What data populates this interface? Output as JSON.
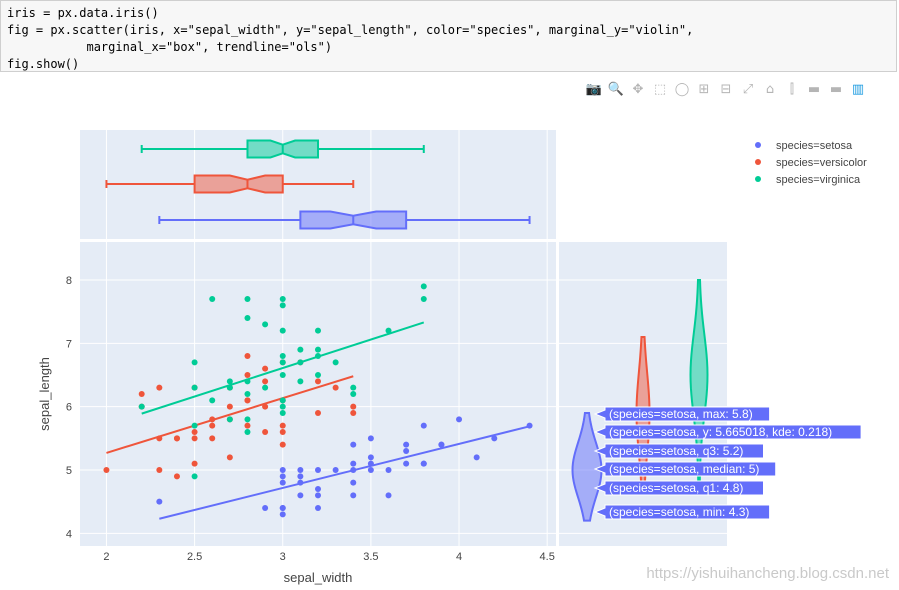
{
  "code": {
    "lines": [
      "iris = px.data.iris()",
      "fig = px.scatter(iris, x=\"sepal_width\", y=\"sepal_length\", color=\"species\", marginal_y=\"violin\",",
      "           marginal_x=\"box\", trendline=\"ols\")",
      "fig.show()"
    ]
  },
  "modebar": {
    "icons": [
      "camera-icon",
      "zoom-icon",
      "pan-icon",
      "box-select-icon",
      "lasso-icon",
      "zoom-in-icon",
      "zoom-out-icon",
      "autoscale-icon",
      "reset-axes-icon",
      "spike-lines-icon",
      "hover-closest-icon",
      "hover-compare-icon",
      "plotly-logo-icon"
    ],
    "glyphs": [
      "📷",
      "🔍",
      "✥",
      "⬚",
      "◯",
      "⊞",
      "⊟",
      "⤢",
      "⌂",
      "⫿",
      "▬",
      "▬",
      "▥"
    ]
  },
  "watermark": "https://yishuihancheng.blog.csdn.net",
  "colors": {
    "setosa": "#636efa",
    "versicolor": "#ef553b",
    "virginica": "#00cc96",
    "plot_bg": "#e5ecf6",
    "grid": "#ffffff"
  },
  "chart_data": {
    "type": "scatter",
    "xlabel": "sepal_width",
    "ylabel": "sepal_length",
    "xlim": [
      1.85,
      4.55
    ],
    "ylim": [
      3.8,
      8.6
    ],
    "xticks": [
      2,
      2.5,
      3,
      3.5,
      4,
      4.5
    ],
    "xtick_labels": [
      "2",
      "2.5",
      "3",
      "3.5",
      "4",
      "4.5"
    ],
    "yticks": [
      4,
      5,
      6,
      7,
      8
    ],
    "ytick_labels": [
      "4",
      "5",
      "6",
      "7",
      "8"
    ],
    "grid": true,
    "legend_position": "top-right",
    "series": [
      {
        "name": "species=setosa",
        "color": "#636efa",
        "points": [
          [
            2.3,
            4.5
          ],
          [
            2.9,
            4.4
          ],
          [
            3.0,
            4.4
          ],
          [
            3.0,
            4.3
          ],
          [
            3.0,
            4.4
          ],
          [
            3.2,
            4.4
          ],
          [
            3.0,
            4.8
          ],
          [
            3.0,
            4.9
          ],
          [
            3.1,
            4.9
          ],
          [
            3.1,
            4.8
          ],
          [
            3.0,
            5.0
          ],
          [
            3.1,
            4.6
          ],
          [
            3.2,
            4.7
          ],
          [
            3.2,
            4.6
          ],
          [
            3.3,
            5.0
          ],
          [
            3.4,
            4.8
          ],
          [
            3.4,
            5.0
          ],
          [
            3.4,
            5.1
          ],
          [
            3.4,
            4.6
          ],
          [
            3.4,
            5.4
          ],
          [
            3.5,
            5.0
          ],
          [
            3.5,
            5.1
          ],
          [
            3.5,
            5.2
          ],
          [
            3.5,
            5.5
          ],
          [
            3.6,
            5.0
          ],
          [
            3.6,
            4.6
          ],
          [
            3.7,
            5.3
          ],
          [
            3.7,
            5.1
          ],
          [
            3.7,
            5.4
          ],
          [
            3.8,
            5.1
          ],
          [
            3.8,
            5.7
          ],
          [
            3.9,
            5.4
          ],
          [
            4.0,
            5.8
          ],
          [
            4.1,
            5.2
          ],
          [
            4.2,
            5.5
          ],
          [
            4.4,
            5.7
          ],
          [
            3.9,
            5.4
          ],
          [
            3.2,
            5.0
          ],
          [
            3.1,
            5.0
          ],
          [
            3.8,
            5.1
          ]
        ],
        "trendline": [
          [
            2.3,
            4.23
          ],
          [
            4.4,
            5.69
          ]
        ]
      },
      {
        "name": "species=versicolor",
        "color": "#ef553b",
        "points": [
          [
            2.0,
            5.0
          ],
          [
            2.2,
            6.0
          ],
          [
            2.2,
            6.2
          ],
          [
            2.3,
            5.0
          ],
          [
            2.3,
            5.5
          ],
          [
            2.3,
            6.3
          ],
          [
            2.4,
            4.9
          ],
          [
            2.4,
            5.5
          ],
          [
            2.5,
            5.1
          ],
          [
            2.5,
            5.5
          ],
          [
            2.5,
            5.6
          ],
          [
            2.6,
            5.5
          ],
          [
            2.6,
            5.7
          ],
          [
            2.6,
            5.8
          ],
          [
            2.7,
            5.2
          ],
          [
            2.7,
            5.8
          ],
          [
            2.7,
            6.0
          ],
          [
            2.8,
            5.7
          ],
          [
            2.8,
            6.1
          ],
          [
            2.8,
            6.5
          ],
          [
            2.8,
            6.8
          ],
          [
            2.9,
            5.6
          ],
          [
            2.9,
            6.0
          ],
          [
            2.9,
            6.4
          ],
          [
            3.0,
            5.4
          ],
          [
            3.0,
            5.6
          ],
          [
            3.0,
            5.7
          ],
          [
            3.0,
            6.7
          ],
          [
            3.1,
            6.7
          ],
          [
            3.2,
            5.9
          ],
          [
            3.2,
            6.4
          ],
          [
            3.3,
            6.3
          ],
          [
            3.4,
            5.9
          ],
          [
            3.4,
            6.0
          ],
          [
            2.9,
            6.6
          ],
          [
            3.0,
            6.1
          ],
          [
            2.8,
            6.1
          ],
          [
            2.4,
            5.5
          ],
          [
            2.7,
            6.3
          ],
          [
            2.5,
            6.3
          ]
        ],
        "trendline": [
          [
            2.0,
            5.27
          ],
          [
            3.4,
            6.48
          ]
        ]
      },
      {
        "name": "species=virginica",
        "color": "#00cc96",
        "points": [
          [
            2.2,
            6.0
          ],
          [
            2.5,
            4.9
          ],
          [
            2.5,
            5.7
          ],
          [
            2.5,
            6.3
          ],
          [
            2.5,
            6.7
          ],
          [
            2.6,
            6.1
          ],
          [
            2.6,
            7.7
          ],
          [
            2.7,
            5.8
          ],
          [
            2.7,
            6.3
          ],
          [
            2.7,
            6.4
          ],
          [
            2.8,
            5.6
          ],
          [
            2.8,
            5.8
          ],
          [
            2.8,
            6.2
          ],
          [
            2.8,
            6.4
          ],
          [
            2.8,
            7.4
          ],
          [
            2.8,
            7.7
          ],
          [
            2.9,
            6.3
          ],
          [
            2.9,
            7.3
          ],
          [
            3.0,
            5.9
          ],
          [
            3.0,
            6.0
          ],
          [
            3.0,
            6.1
          ],
          [
            3.0,
            6.5
          ],
          [
            3.0,
            6.7
          ],
          [
            3.0,
            6.8
          ],
          [
            3.0,
            7.2
          ],
          [
            3.0,
            7.6
          ],
          [
            3.0,
            7.7
          ],
          [
            3.1,
            6.4
          ],
          [
            3.1,
            6.7
          ],
          [
            3.1,
            6.9
          ],
          [
            3.2,
            6.5
          ],
          [
            3.2,
            6.8
          ],
          [
            3.2,
            6.9
          ],
          [
            3.2,
            7.2
          ],
          [
            3.3,
            6.7
          ],
          [
            3.4,
            6.2
          ],
          [
            3.4,
            6.3
          ],
          [
            3.6,
            7.2
          ],
          [
            3.8,
            7.7
          ],
          [
            3.8,
            7.9
          ]
        ],
        "trendline": [
          [
            2.2,
            5.89
          ],
          [
            3.8,
            7.33
          ]
        ]
      }
    ],
    "marginal_x_box": [
      {
        "name": "species=virginica",
        "min": 2.2,
        "q1": 2.8,
        "median": 3.0,
        "q3": 3.2,
        "max": 3.8,
        "notch": [
          2.93,
          3.07
        ]
      },
      {
        "name": "species=versicolor",
        "min": 2.0,
        "q1": 2.5,
        "median": 2.8,
        "q3": 3.0,
        "max": 3.4,
        "notch": [
          2.7,
          2.9
        ]
      },
      {
        "name": "species=setosa",
        "min": 2.3,
        "q1": 3.1,
        "median": 3.4,
        "q3": 3.7,
        "max": 4.4,
        "notch": [
          3.27,
          3.53
        ]
      }
    ],
    "marginal_y_violin": [
      {
        "name": "species=setosa",
        "min": 4.3,
        "q1": 4.8,
        "median": 5.0,
        "q3": 5.2,
        "max": 5.8
      },
      {
        "name": "species=versicolor",
        "min": 4.9,
        "q1": 5.6,
        "median": 5.9,
        "q3": 6.3,
        "max": 7.0
      },
      {
        "name": "species=virginica",
        "min": 4.9,
        "q1": 6.2,
        "median": 6.5,
        "q3": 6.9,
        "max": 7.9
      }
    ],
    "hover_labels": [
      "(species=setosa, max: 5.8)",
      "(species=setosa, y: 5.665018, kde: 0.218)",
      "(species=setosa, q3: 5.2)",
      "(species=setosa, median: 5)",
      "(species=setosa, q1: 4.8)",
      "(species=setosa, min: 4.3)"
    ],
    "hover_values": [
      5.8,
      5.665018,
      5.2,
      5.0,
      4.8,
      4.3
    ]
  }
}
